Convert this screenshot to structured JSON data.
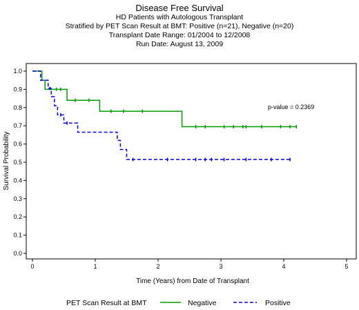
{
  "chart_data": {
    "type": "line",
    "title": "Disease Free Survival",
    "subtitles": [
      "HD Patients with Autologous Transplant",
      "Stratified by PET Scan Result at BMT: Positive (n=21), Negative (n=20)",
      "Transplant Date Range: 01/2004 to 12/2008",
      "Run Date: August 13, 2009"
    ],
    "xlabel": "Time (Years) from Date of Transplant",
    "ylabel": "Survival Probability",
    "xlim": [
      0,
      5
    ],
    "ylim": [
      0,
      1
    ],
    "xticks": [
      "0",
      "1",
      "2",
      "3",
      "4",
      "5"
    ],
    "yticks": [
      "0.0",
      "0.1",
      "0.2",
      "0.3",
      "0.4",
      "0.5",
      "0.6",
      "0.7",
      "0.8",
      "0.9",
      "1.0"
    ],
    "annotation": "p-value = 0.2369",
    "legend_title": "PET Scan Result at BMT",
    "legend_position": "bottom",
    "series": [
      {
        "name": "Negative",
        "color": "#009900",
        "dash": "solid",
        "steps": [
          [
            0,
            1.0
          ],
          [
            0.15,
            0.95
          ],
          [
            0.2,
            0.9
          ],
          [
            0.55,
            0.84
          ],
          [
            1.07,
            0.78
          ],
          [
            2.38,
            0.695
          ],
          [
            4.2,
            0.695
          ]
        ],
        "censor_x": [
          0.38,
          0.45,
          0.68,
          0.9,
          1.25,
          1.45,
          1.75,
          2.6,
          2.75,
          3.05,
          3.2,
          3.35,
          3.4,
          3.65,
          3.95,
          4.1,
          4.2
        ]
      },
      {
        "name": "Positive",
        "color": "#0000ee",
        "dash": "dashed",
        "steps": [
          [
            0,
            1.0
          ],
          [
            0.13,
            0.95
          ],
          [
            0.25,
            0.905
          ],
          [
            0.3,
            0.86
          ],
          [
            0.35,
            0.81
          ],
          [
            0.4,
            0.76
          ],
          [
            0.5,
            0.715
          ],
          [
            0.72,
            0.665
          ],
          [
            1.35,
            0.62
          ],
          [
            1.4,
            0.57
          ],
          [
            1.5,
            0.515
          ],
          [
            4.1,
            0.515
          ]
        ],
        "censor_x": [
          0.28,
          0.45,
          0.55,
          1.6,
          2.15,
          2.6,
          2.75,
          2.85,
          3.05,
          3.4,
          3.8,
          4.1
        ]
      }
    ]
  }
}
